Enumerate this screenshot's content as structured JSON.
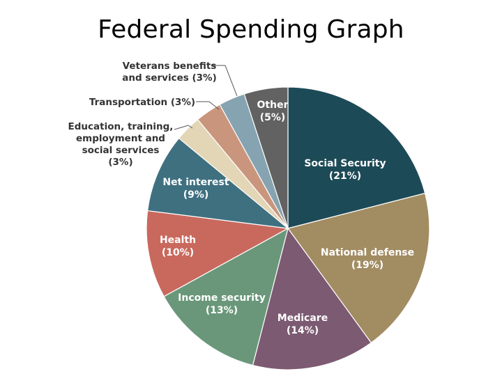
{
  "slide": {
    "title": "Federal Spending Graph"
  },
  "chart_data": {
    "type": "pie",
    "title": "",
    "slices": [
      {
        "label": "Social Security",
        "pct_label": "(21%)",
        "value": 21,
        "color": "#1d4a57"
      },
      {
        "label": "National defense",
        "pct_label": "(19%)",
        "value": 19,
        "color": "#a28c62"
      },
      {
        "label": "Medicare",
        "pct_label": "(14%)",
        "value": 14,
        "color": "#7c5a72"
      },
      {
        "label": "Income security",
        "pct_label": "(13%)",
        "value": 13,
        "color": "#6a977a"
      },
      {
        "label": "Health",
        "pct_label": "(10%)",
        "value": 10,
        "color": "#c9695e"
      },
      {
        "label": "Net interest",
        "pct_label": "(9%)",
        "value": 9,
        "color": "#3f7080"
      },
      {
        "label": "Education, training, employment and social services",
        "pct_label": "(3%)",
        "value": 3,
        "color": "#e2d6b6"
      },
      {
        "label": "Transportation",
        "pct_label": "(3%)",
        "value": 3,
        "color": "#c9967d"
      },
      {
        "label": "Veterans benefits and services",
        "pct_label": "(3%)",
        "value": 3,
        "color": "#86a3b1"
      },
      {
        "label": "Other",
        "pct_label": "(5%)",
        "value": 5,
        "color": "#626262"
      }
    ],
    "label_lines": {
      "Social Security": [
        "Social Security",
        "(21%)"
      ],
      "National defense": [
        "National defense",
        "(19%)"
      ],
      "Medicare": [
        "Medicare",
        "(14%)"
      ],
      "Income security": [
        "Income security",
        "(13%)"
      ],
      "Health": [
        "Health",
        "(10%)"
      ],
      "Net interest": [
        "Net interest",
        "(9%)"
      ],
      "Education, training, employment and social services": [
        "Education, training,",
        "employment and",
        "social services",
        "(3%)"
      ],
      "Transportation": [
        "Transportation (3%)"
      ],
      "Veterans benefits and services": [
        "Veterans benefits",
        "and services (3%)"
      ],
      "Other": [
        "Other",
        "(5%)"
      ]
    }
  }
}
